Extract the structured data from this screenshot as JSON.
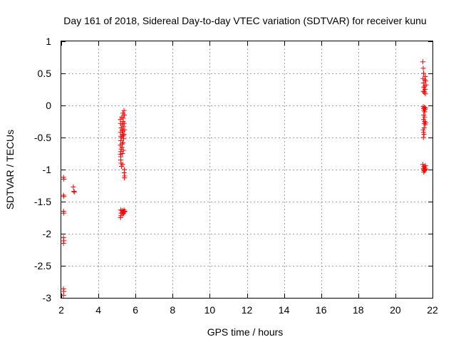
{
  "chart_data": {
    "type": "scatter",
    "title": "Day 161 of 2018, Sidereal Day-to-day VTEC variation (SDTVAR) for receiver kunu",
    "xlabel": "GPS time / hours",
    "ylabel": "SDTVAR / TECUs",
    "xlim": [
      2,
      22
    ],
    "ylim": [
      -3,
      1
    ],
    "xticks": [
      "2",
      "4",
      "6",
      "8",
      "10",
      "12",
      "14",
      "16",
      "18",
      "20",
      "22"
    ],
    "yticks": [
      "1",
      "0.5",
      "0",
      "-0.5",
      "-1",
      "-1.5",
      "-2",
      "-2.5",
      "-3"
    ],
    "xtick_values": [
      2,
      4,
      6,
      8,
      10,
      12,
      14,
      16,
      18,
      20,
      22
    ],
    "ytick_values": [
      1,
      0.5,
      0,
      -0.5,
      -1,
      -1.5,
      -2,
      -2.5,
      -3
    ],
    "grid": true,
    "marker": "+",
    "color": "#ff0000",
    "series": [
      {
        "name": "SDTVAR",
        "points": [
          [
            2.12,
            -1.12
          ],
          [
            2.14,
            -1.15
          ],
          [
            2.12,
            -1.4
          ],
          [
            2.14,
            -1.42
          ],
          [
            2.12,
            -1.65
          ],
          [
            2.14,
            -1.68
          ],
          [
            2.12,
            -2.06
          ],
          [
            2.14,
            -2.11
          ],
          [
            2.12,
            -2.15
          ],
          [
            2.12,
            -2.86
          ],
          [
            2.14,
            -2.9
          ],
          [
            2.12,
            -2.96
          ],
          [
            2.65,
            -1.27
          ],
          [
            2.68,
            -1.34
          ],
          [
            2.7,
            -1.35
          ],
          [
            5.18,
            -0.22
          ],
          [
            5.2,
            -0.28
          ],
          [
            5.22,
            -0.35
          ],
          [
            5.19,
            -0.42
          ],
          [
            5.21,
            -0.48
          ],
          [
            5.2,
            -0.55
          ],
          [
            5.18,
            -0.62
          ],
          [
            5.22,
            -0.68
          ],
          [
            5.2,
            -0.72
          ],
          [
            5.19,
            -0.76
          ],
          [
            5.21,
            -0.8
          ],
          [
            5.2,
            -0.85
          ],
          [
            5.22,
            -0.9
          ],
          [
            5.24,
            -0.95
          ],
          [
            5.26,
            -0.18
          ],
          [
            5.28,
            -0.3
          ],
          [
            5.27,
            -0.38
          ],
          [
            5.29,
            -0.45
          ],
          [
            5.26,
            -0.5
          ],
          [
            5.28,
            -0.6
          ],
          [
            5.27,
            -0.65
          ],
          [
            5.29,
            -0.75
          ],
          [
            5.3,
            -0.92
          ],
          [
            5.32,
            -0.12
          ],
          [
            5.34,
            -0.2
          ],
          [
            5.33,
            -0.25
          ],
          [
            5.35,
            -0.33
          ],
          [
            5.32,
            -0.4
          ],
          [
            5.34,
            -0.47
          ],
          [
            5.36,
            -0.52
          ],
          [
            5.33,
            -0.58
          ],
          [
            5.35,
            -0.7
          ],
          [
            5.38,
            -0.08
          ],
          [
            5.4,
            -0.15
          ],
          [
            5.39,
            -0.28
          ],
          [
            5.41,
            -0.38
          ],
          [
            5.38,
            -0.45
          ],
          [
            5.4,
            -1.0
          ],
          [
            5.39,
            -1.05
          ],
          [
            5.41,
            -1.1
          ],
          [
            5.4,
            -1.13
          ],
          [
            5.2,
            -1.63
          ],
          [
            5.22,
            -1.68
          ],
          [
            5.21,
            -1.72
          ],
          [
            5.19,
            -1.75
          ],
          [
            5.27,
            -1.64
          ],
          [
            5.29,
            -1.67
          ],
          [
            5.31,
            -1.7
          ],
          [
            5.34,
            -1.65
          ],
          [
            5.36,
            -1.68
          ],
          [
            5.38,
            -1.63
          ],
          [
            5.4,
            -1.66
          ],
          [
            5.42,
            -1.65
          ],
          [
            21.48,
            0.68
          ],
          [
            21.5,
            0.58
          ],
          [
            21.52,
            0.5
          ],
          [
            21.49,
            0.42
          ],
          [
            21.51,
            0.35
          ],
          [
            21.53,
            0.28
          ],
          [
            21.55,
            0.22
          ],
          [
            21.57,
            0.3
          ],
          [
            21.59,
            0.4
          ],
          [
            21.61,
            0.45
          ],
          [
            21.63,
            0.38
          ],
          [
            21.65,
            0.32
          ],
          [
            21.6,
            0.25
          ],
          [
            21.56,
            0.2
          ],
          [
            21.62,
            0.18
          ],
          [
            21.5,
            0.22
          ],
          [
            21.5,
            -0.02
          ],
          [
            21.52,
            -0.05
          ],
          [
            21.54,
            -0.08
          ],
          [
            21.56,
            -0.03
          ],
          [
            21.58,
            -0.1
          ],
          [
            21.6,
            -0.06
          ],
          [
            21.62,
            -0.04
          ],
          [
            21.53,
            -0.15
          ],
          [
            21.57,
            -0.18
          ],
          [
            21.52,
            -0.22
          ],
          [
            21.55,
            -0.28
          ],
          [
            21.58,
            -0.25
          ],
          [
            21.61,
            -0.3
          ],
          [
            21.63,
            -0.27
          ],
          [
            21.5,
            -0.38
          ],
          [
            21.52,
            -0.42
          ],
          [
            21.54,
            -0.45
          ],
          [
            21.51,
            -0.5
          ],
          [
            21.55,
            -0.35
          ],
          [
            21.48,
            -0.92
          ],
          [
            21.5,
            -0.98
          ],
          [
            21.52,
            -1.0
          ],
          [
            21.54,
            -0.95
          ],
          [
            21.56,
            -1.02
          ],
          [
            21.58,
            -0.97
          ],
          [
            21.6,
            -1.0
          ],
          [
            21.62,
            -0.94
          ],
          [
            21.64,
            -0.99
          ],
          [
            21.53,
            -1.04
          ],
          [
            21.57,
            -1.01
          ]
        ]
      }
    ]
  }
}
